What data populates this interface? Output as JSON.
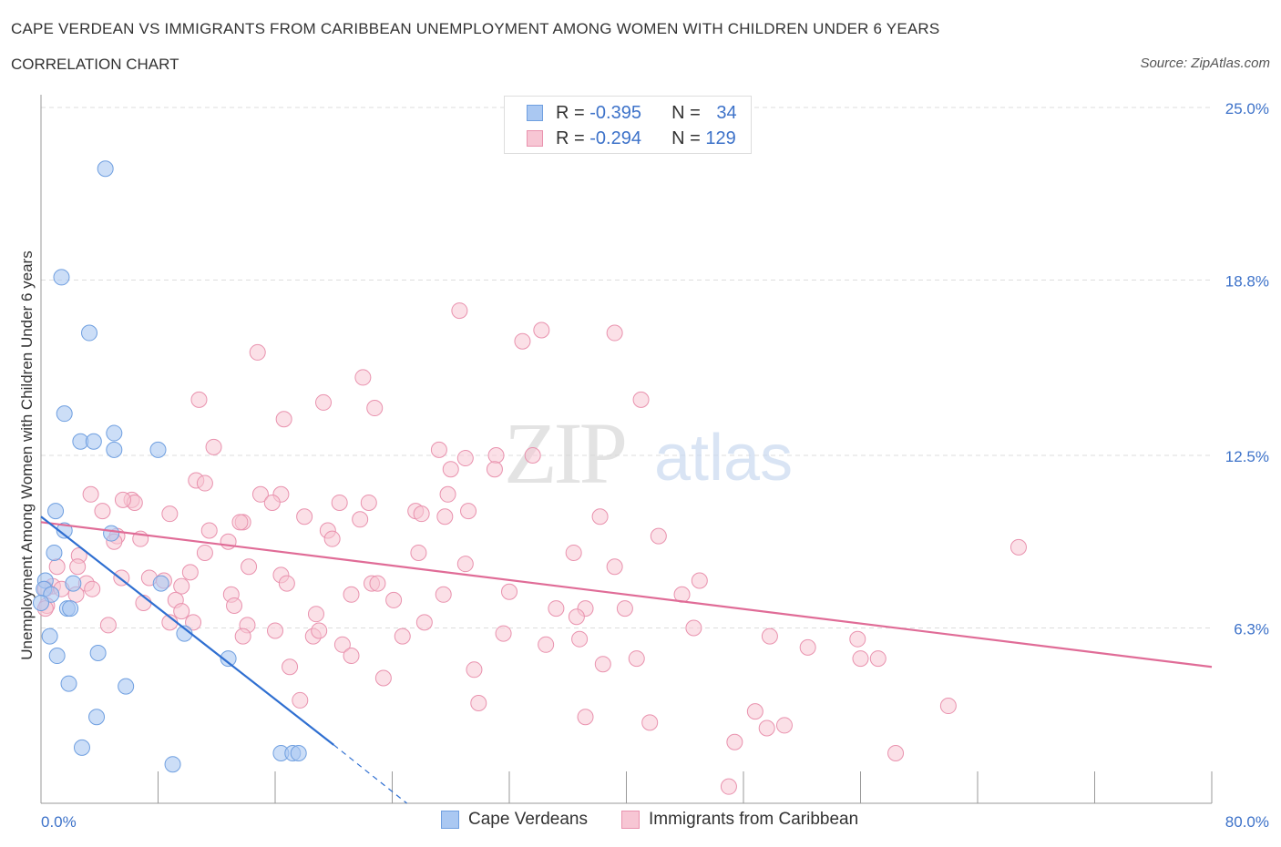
{
  "header": {
    "title": "CAPE VERDEAN VS IMMIGRANTS FROM CARIBBEAN UNEMPLOYMENT AMONG WOMEN WITH CHILDREN UNDER 6 YEARS",
    "subtitle": "CORRELATION CHART",
    "source": "Source: ZipAtlas.com"
  },
  "watermark": "ZIPatlas",
  "colors": {
    "blue_fill": "#aac8f2",
    "blue_stroke": "#6f9fe0",
    "blue_line": "#2f6fd1",
    "pink_fill": "#f7c6d4",
    "pink_stroke": "#e992ae",
    "pink_line": "#e06c97",
    "axis_text": "#3d72c9",
    "grid": "#dddddd"
  },
  "legend_top": {
    "rows": [
      {
        "r_label": "R = ",
        "r_value": "-0.395",
        "n_label": "N = ",
        "n_value": "34"
      },
      {
        "r_label": "R = ",
        "r_value": "-0.294",
        "n_label": "N = ",
        "n_value": "129"
      }
    ]
  },
  "legend_bottom": [
    "Cape Verdeans",
    "Immigrants from Caribbean"
  ],
  "chart_data": {
    "type": "scatter",
    "title": "CAPE VERDEAN VS IMMIGRANTS FROM CARIBBEAN UNEMPLOYMENT AMONG WOMEN WITH CHILDREN UNDER 6 YEARS",
    "xlabel": "",
    "ylabel": "Unemployment Among Women with Children Under 6 years",
    "xlim": [
      0,
      80
    ],
    "ylim": [
      0,
      25
    ],
    "x_tick_labels": [
      "0.0%",
      "80.0%"
    ],
    "y_ticks": [
      6.3,
      12.5,
      18.8,
      25.0
    ],
    "y_tick_labels": [
      "6.3%",
      "12.5%",
      "18.8%",
      "25.0%"
    ],
    "grid": true,
    "legend_position": "top-center",
    "series": [
      {
        "name": "Cape Verdeans",
        "r": -0.395,
        "n": 34,
        "points": [
          [
            4.4,
            22.8
          ],
          [
            1.4,
            18.9
          ],
          [
            3.3,
            16.9
          ],
          [
            1.6,
            14.0
          ],
          [
            2.7,
            13.0
          ],
          [
            3.6,
            13.0
          ],
          [
            5.0,
            13.3
          ],
          [
            5.0,
            12.7
          ],
          [
            8.0,
            12.7
          ],
          [
            1.0,
            10.5
          ],
          [
            1.6,
            9.8
          ],
          [
            4.8,
            9.7
          ],
          [
            0.9,
            9.0
          ],
          [
            0.3,
            8.0
          ],
          [
            0.2,
            7.7
          ],
          [
            2.2,
            7.9
          ],
          [
            0.7,
            7.5
          ],
          [
            8.2,
            7.9
          ],
          [
            1.8,
            7.0
          ],
          [
            2.0,
            7.0
          ],
          [
            0.6,
            6.0
          ],
          [
            9.8,
            6.1
          ],
          [
            1.1,
            5.3
          ],
          [
            3.9,
            5.4
          ],
          [
            12.8,
            5.2
          ],
          [
            1.9,
            4.3
          ],
          [
            5.8,
            4.2
          ],
          [
            3.8,
            3.1
          ],
          [
            2.8,
            2.0
          ],
          [
            9.0,
            1.4
          ],
          [
            16.4,
            1.8
          ],
          [
            17.2,
            1.8
          ],
          [
            17.6,
            1.8
          ],
          [
            0.0,
            7.2
          ]
        ],
        "trend": {
          "x": [
            0.0,
            20.0
          ],
          "y": [
            10.3,
            2.1
          ],
          "dashed_to": [
            25.0,
            0.0
          ]
        }
      },
      {
        "name": "Immigrants from Caribbean",
        "r": -0.294,
        "n": 129,
        "points": [
          [
            28.6,
            17.7
          ],
          [
            32.9,
            16.6
          ],
          [
            34.2,
            17.0
          ],
          [
            39.2,
            16.9
          ],
          [
            14.8,
            16.2
          ],
          [
            22.0,
            15.3
          ],
          [
            10.8,
            14.5
          ],
          [
            19.3,
            14.4
          ],
          [
            22.8,
            14.2
          ],
          [
            41.0,
            14.5
          ],
          [
            16.6,
            13.8
          ],
          [
            11.8,
            12.8
          ],
          [
            27.2,
            12.7
          ],
          [
            31.1,
            12.5
          ],
          [
            33.6,
            12.5
          ],
          [
            29.0,
            12.4
          ],
          [
            28.0,
            12.0
          ],
          [
            31.0,
            12.0
          ],
          [
            10.6,
            11.6
          ],
          [
            11.2,
            11.5
          ],
          [
            3.4,
            11.1
          ],
          [
            15.0,
            11.1
          ],
          [
            16.4,
            11.1
          ],
          [
            27.8,
            11.1
          ],
          [
            6.2,
            10.9
          ],
          [
            6.4,
            10.8
          ],
          [
            15.8,
            10.8
          ],
          [
            20.4,
            10.8
          ],
          [
            22.4,
            10.8
          ],
          [
            4.2,
            10.5
          ],
          [
            8.8,
            10.4
          ],
          [
            29.2,
            10.5
          ],
          [
            18.0,
            10.3
          ],
          [
            25.6,
            10.5
          ],
          [
            26.0,
            10.4
          ],
          [
            27.6,
            10.3
          ],
          [
            13.8,
            10.1
          ],
          [
            13.6,
            10.1
          ],
          [
            21.8,
            10.2
          ],
          [
            38.2,
            10.3
          ],
          [
            11.5,
            9.8
          ],
          [
            19.6,
            9.8
          ],
          [
            5.2,
            9.6
          ],
          [
            6.8,
            9.5
          ],
          [
            19.9,
            9.5
          ],
          [
            12.8,
            9.4
          ],
          [
            5.0,
            9.4
          ],
          [
            11.2,
            9.0
          ],
          [
            25.8,
            9.0
          ],
          [
            36.4,
            9.0
          ],
          [
            42.2,
            9.6
          ],
          [
            66.8,
            9.2
          ],
          [
            2.6,
            8.9
          ],
          [
            14.2,
            8.5
          ],
          [
            29.0,
            8.6
          ],
          [
            39.2,
            8.5
          ],
          [
            16.4,
            8.2
          ],
          [
            10.2,
            8.3
          ],
          [
            5.5,
            8.1
          ],
          [
            7.4,
            8.1
          ],
          [
            16.8,
            7.9
          ],
          [
            22.6,
            7.9
          ],
          [
            23.0,
            7.9
          ],
          [
            8.4,
            8.0
          ],
          [
            3.1,
            7.9
          ],
          [
            9.6,
            7.8
          ],
          [
            0.8,
            7.8
          ],
          [
            0.3,
            7.7
          ],
          [
            1.4,
            7.7
          ],
          [
            3.5,
            7.7
          ],
          [
            13.0,
            7.5
          ],
          [
            21.2,
            7.5
          ],
          [
            27.5,
            7.5
          ],
          [
            43.8,
            7.5
          ],
          [
            7.0,
            7.2
          ],
          [
            9.2,
            7.3
          ],
          [
            13.2,
            7.1
          ],
          [
            24.1,
            7.3
          ],
          [
            35.2,
            7.0
          ],
          [
            37.2,
            7.0
          ],
          [
            39.9,
            7.0
          ],
          [
            9.6,
            6.9
          ],
          [
            18.8,
            6.8
          ],
          [
            36.6,
            6.7
          ],
          [
            8.8,
            6.5
          ],
          [
            14.1,
            6.4
          ],
          [
            26.2,
            6.5
          ],
          [
            4.6,
            6.4
          ],
          [
            16.0,
            6.2
          ],
          [
            31.6,
            6.1
          ],
          [
            44.6,
            6.3
          ],
          [
            13.8,
            6.0
          ],
          [
            18.6,
            6.0
          ],
          [
            24.7,
            6.0
          ],
          [
            49.8,
            6.0
          ],
          [
            55.8,
            5.9
          ],
          [
            20.6,
            5.7
          ],
          [
            34.5,
            5.7
          ],
          [
            36.8,
            5.9
          ],
          [
            52.4,
            5.6
          ],
          [
            21.2,
            5.3
          ],
          [
            40.7,
            5.2
          ],
          [
            56.0,
            5.2
          ],
          [
            57.2,
            5.2
          ],
          [
            17.0,
            4.9
          ],
          [
            29.6,
            4.8
          ],
          [
            38.4,
            5.0
          ],
          [
            23.4,
            4.5
          ],
          [
            17.7,
            3.7
          ],
          [
            29.9,
            3.6
          ],
          [
            62.0,
            3.5
          ],
          [
            48.8,
            3.3
          ],
          [
            37.2,
            3.1
          ],
          [
            41.6,
            2.9
          ],
          [
            49.6,
            2.7
          ],
          [
            50.8,
            2.8
          ],
          [
            47.4,
            2.2
          ],
          [
            58.4,
            1.8
          ],
          [
            47.0,
            0.6
          ],
          [
            0.4,
            7.1
          ],
          [
            0.3,
            7.0
          ],
          [
            1.1,
            8.5
          ],
          [
            2.5,
            8.5
          ],
          [
            2.4,
            7.5
          ],
          [
            5.6,
            10.9
          ],
          [
            10.4,
            6.5
          ],
          [
            19.0,
            6.2
          ],
          [
            32.0,
            7.6
          ],
          [
            45.0,
            8.0
          ]
        ],
        "trend": {
          "x": [
            0.0,
            80.0
          ],
          "y": [
            10.1,
            4.9
          ]
        }
      }
    ]
  }
}
